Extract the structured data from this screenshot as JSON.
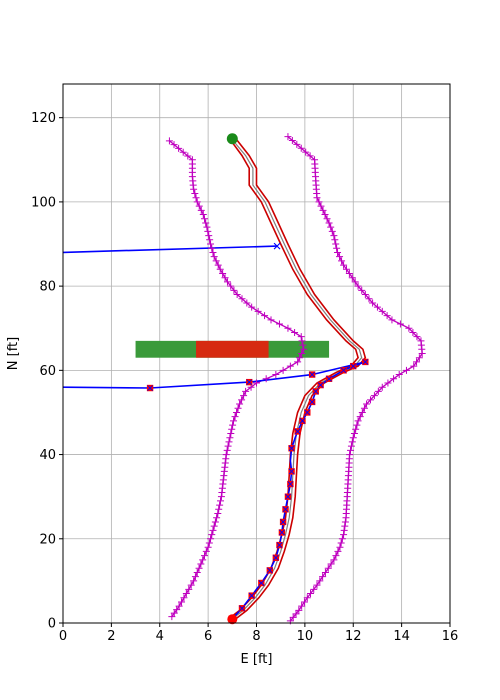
{
  "chart_data": {
    "type": "line",
    "xlabel": "E [ft]",
    "ylabel": "N [ft]",
    "xlim": [
      0,
      16
    ],
    "ylim": [
      0,
      128
    ],
    "xticks": [
      0,
      2,
      4,
      6,
      8,
      10,
      12,
      14,
      16
    ],
    "yticks": [
      0,
      20,
      40,
      60,
      80,
      100,
      120
    ],
    "grid": true,
    "colors": {
      "reference_path": "#cc0000",
      "center_path": "#808080",
      "boundary": "#bf00bf",
      "trajectory": "#0000ff",
      "waypoint": "#ff0000",
      "start_marker": "#ff0000",
      "goal_marker": "#1a8a1a",
      "bar_green": "#3a9a3a",
      "bar_red": "#d62a10"
    },
    "series": [
      {
        "role": "path_left",
        "points": [
          [
            6.85,
            1
          ],
          [
            7.3,
            3
          ],
          [
            7.8,
            6
          ],
          [
            8.2,
            9
          ],
          [
            8.6,
            13
          ],
          [
            8.85,
            17
          ],
          [
            9.05,
            21
          ],
          [
            9.2,
            25
          ],
          [
            9.3,
            30
          ],
          [
            9.35,
            35
          ],
          [
            9.4,
            40
          ],
          [
            9.5,
            45
          ],
          [
            9.7,
            50
          ],
          [
            10.0,
            54
          ],
          [
            10.5,
            57
          ],
          [
            11.3,
            59.5
          ],
          [
            11.9,
            61
          ],
          [
            12.2,
            63
          ],
          [
            12.1,
            65
          ],
          [
            11.7,
            67
          ],
          [
            10.9,
            72
          ],
          [
            10.1,
            78
          ],
          [
            9.5,
            84
          ],
          [
            9.0,
            90
          ],
          [
            8.6,
            95
          ],
          [
            8.2,
            100
          ],
          [
            7.7,
            104
          ],
          [
            7.7,
            108
          ],
          [
            7.4,
            111
          ],
          [
            6.95,
            114.5
          ]
        ]
      },
      {
        "role": "path_center",
        "points": [
          [
            7.0,
            1
          ],
          [
            7.45,
            3
          ],
          [
            7.95,
            6
          ],
          [
            8.35,
            9
          ],
          [
            8.75,
            13
          ],
          [
            9.0,
            17
          ],
          [
            9.2,
            21
          ],
          [
            9.35,
            25
          ],
          [
            9.45,
            30
          ],
          [
            9.5,
            35
          ],
          [
            9.55,
            40
          ],
          [
            9.65,
            45
          ],
          [
            9.85,
            50
          ],
          [
            10.15,
            54
          ],
          [
            10.65,
            57
          ],
          [
            11.45,
            59.5
          ],
          [
            12.05,
            61
          ],
          [
            12.35,
            63
          ],
          [
            12.25,
            65
          ],
          [
            11.85,
            67
          ],
          [
            11.05,
            72
          ],
          [
            10.25,
            78
          ],
          [
            9.65,
            84
          ],
          [
            9.15,
            90
          ],
          [
            8.75,
            95
          ],
          [
            8.35,
            100
          ],
          [
            7.85,
            104
          ],
          [
            7.85,
            108
          ],
          [
            7.55,
            111
          ],
          [
            7.0,
            114.8
          ]
        ]
      },
      {
        "role": "path_right",
        "points": [
          [
            7.15,
            1
          ],
          [
            7.6,
            3
          ],
          [
            8.1,
            6
          ],
          [
            8.5,
            9
          ],
          [
            8.9,
            13
          ],
          [
            9.15,
            17
          ],
          [
            9.35,
            21
          ],
          [
            9.5,
            25
          ],
          [
            9.6,
            30
          ],
          [
            9.65,
            35
          ],
          [
            9.7,
            40
          ],
          [
            9.8,
            45
          ],
          [
            10.0,
            50
          ],
          [
            10.3,
            54
          ],
          [
            10.8,
            57
          ],
          [
            11.6,
            59.5
          ],
          [
            12.2,
            61
          ],
          [
            12.5,
            63
          ],
          [
            12.4,
            65
          ],
          [
            12.0,
            67
          ],
          [
            11.2,
            72
          ],
          [
            10.4,
            78
          ],
          [
            9.8,
            84
          ],
          [
            9.3,
            90
          ],
          [
            8.9,
            95
          ],
          [
            8.5,
            100
          ],
          [
            8.0,
            104
          ],
          [
            8.0,
            108
          ],
          [
            7.7,
            111
          ],
          [
            7.15,
            115
          ]
        ]
      },
      {
        "role": "boundary_left",
        "points": [
          [
            4.5,
            1.5
          ],
          [
            4.8,
            4
          ],
          [
            5.1,
            7
          ],
          [
            5.4,
            10
          ],
          [
            5.7,
            14
          ],
          [
            6.0,
            18
          ],
          [
            6.2,
            22
          ],
          [
            6.4,
            26
          ],
          [
            6.55,
            30
          ],
          [
            6.65,
            35
          ],
          [
            6.75,
            40
          ],
          [
            6.9,
            44
          ],
          [
            7.05,
            48
          ],
          [
            7.3,
            52
          ],
          [
            7.55,
            55
          ],
          [
            8.0,
            57
          ],
          [
            8.8,
            59
          ],
          [
            9.7,
            62
          ],
          [
            9.95,
            65
          ],
          [
            9.85,
            68
          ],
          [
            9.3,
            70
          ],
          [
            8.6,
            72
          ],
          [
            7.8,
            75
          ],
          [
            7.2,
            78
          ],
          [
            6.8,
            81
          ],
          [
            6.5,
            84
          ],
          [
            6.25,
            87
          ],
          [
            6.1,
            90
          ],
          [
            5.95,
            94
          ],
          [
            5.8,
            97
          ],
          [
            5.55,
            100
          ],
          [
            5.4,
            103
          ],
          [
            5.35,
            106
          ],
          [
            5.35,
            110
          ],
          [
            4.4,
            114.5
          ]
        ]
      },
      {
        "role": "boundary_right",
        "points": [
          [
            9.4,
            0.5
          ],
          [
            9.75,
            3
          ],
          [
            10.1,
            6
          ],
          [
            10.5,
            9
          ],
          [
            10.85,
            12
          ],
          [
            11.2,
            15
          ],
          [
            11.45,
            18
          ],
          [
            11.6,
            21
          ],
          [
            11.7,
            25
          ],
          [
            11.75,
            30
          ],
          [
            11.8,
            35
          ],
          [
            11.85,
            40
          ],
          [
            12.0,
            44
          ],
          [
            12.2,
            48
          ],
          [
            12.55,
            52
          ],
          [
            13.2,
            56
          ],
          [
            13.9,
            59
          ],
          [
            14.5,
            61
          ],
          [
            14.85,
            64
          ],
          [
            14.8,
            67
          ],
          [
            14.3,
            70
          ],
          [
            13.6,
            72
          ],
          [
            12.8,
            76
          ],
          [
            12.2,
            80
          ],
          [
            11.6,
            85
          ],
          [
            11.35,
            88
          ],
          [
            11.2,
            92
          ],
          [
            11.0,
            95
          ],
          [
            10.75,
            98
          ],
          [
            10.5,
            101
          ],
          [
            10.45,
            105
          ],
          [
            10.4,
            110
          ],
          [
            9.3,
            115.5
          ]
        ]
      },
      {
        "role": "trajectory",
        "points": [
          [
            7.0,
            1
          ],
          [
            7.4,
            3.5
          ],
          [
            7.8,
            6.5
          ],
          [
            8.2,
            9.5
          ],
          [
            8.55,
            12.5
          ],
          [
            8.8,
            15.5
          ],
          [
            8.95,
            18.5
          ],
          [
            9.05,
            21.5
          ],
          [
            9.1,
            24
          ],
          [
            9.2,
            27
          ],
          [
            9.3,
            30
          ],
          [
            9.4,
            33
          ],
          [
            9.45,
            36
          ],
          [
            9.4,
            38.5
          ],
          [
            9.45,
            41.5
          ],
          [
            9.6,
            44
          ],
          [
            9.7,
            45.5
          ],
          [
            9.9,
            48
          ],
          [
            10.1,
            50
          ],
          [
            10.3,
            52.5
          ],
          [
            10.45,
            55
          ],
          [
            10.65,
            56.5
          ],
          [
            11.0,
            58
          ],
          [
            11.6,
            60
          ],
          [
            12.0,
            61
          ],
          [
            12.5,
            62
          ],
          [
            10.3,
            59
          ],
          [
            7.7,
            57.2
          ],
          [
            3.6,
            55.8
          ],
          [
            0.0,
            56.0
          ]
        ]
      },
      {
        "role": "trajectory_far",
        "points": [
          [
            0.0,
            88.0
          ],
          [
            8.85,
            89.5
          ]
        ]
      },
      {
        "role": "waypoints",
        "points": [
          [
            7.4,
            3.5
          ],
          [
            7.8,
            6.5
          ],
          [
            8.2,
            9.5
          ],
          [
            8.55,
            12.5
          ],
          [
            8.8,
            15.5
          ],
          [
            8.95,
            18.5
          ],
          [
            9.05,
            21.5
          ],
          [
            9.1,
            24
          ],
          [
            9.2,
            27
          ],
          [
            9.3,
            30
          ],
          [
            9.4,
            33
          ],
          [
            9.45,
            36
          ],
          [
            9.45,
            41.5
          ],
          [
            9.7,
            45.5
          ],
          [
            9.9,
            48
          ],
          [
            10.1,
            50
          ],
          [
            10.3,
            52.5
          ],
          [
            10.45,
            55
          ],
          [
            10.65,
            56.5
          ],
          [
            11.0,
            58
          ],
          [
            11.6,
            60
          ],
          [
            12.0,
            61
          ],
          [
            12.5,
            62
          ],
          [
            10.3,
            59
          ],
          [
            7.7,
            57.2
          ],
          [
            3.6,
            55.8
          ]
        ]
      }
    ],
    "start": [
      7.0,
      0.9
    ],
    "goal": [
      7.0,
      115.0
    ],
    "bars": [
      {
        "color": "bar_green",
        "x0": 3.0,
        "x1": 11.0,
        "y0": 63.0,
        "y1": 67.0
      },
      {
        "color": "bar_red",
        "x0": 5.5,
        "x1": 8.5,
        "y0": 63.0,
        "y1": 67.0
      }
    ]
  }
}
